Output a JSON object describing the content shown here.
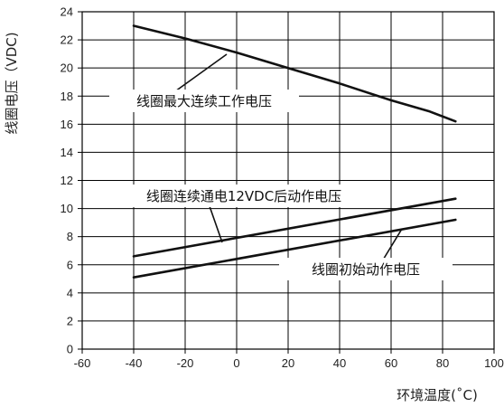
{
  "chart_data": {
    "type": "line",
    "title": "",
    "xlabel": "环境温度(˚C)",
    "ylabel": "线圈电压（VDC)",
    "xlim": [
      -60,
      100
    ],
    "ylim": [
      0,
      24
    ],
    "x_ticks": [
      "-60",
      "-40",
      "-20",
      "0",
      "20",
      "40",
      "60",
      "80",
      "100"
    ],
    "y_ticks": [
      "0",
      "2",
      "4",
      "6",
      "8",
      "10",
      "12",
      "14",
      "16",
      "18",
      "20",
      "22",
      "24"
    ],
    "grid": true,
    "legend": "none",
    "series": [
      {
        "name": "线圈最大连续工作电压",
        "x": [
          -40,
          -20,
          0,
          20,
          40,
          60,
          75,
          85
        ],
        "y": [
          23.0,
          22.1,
          21.1,
          20.0,
          18.9,
          17.7,
          16.9,
          16.2
        ]
      },
      {
        "name": "线圈连续通电12VDC后动作电压",
        "x": [
          -40,
          85
        ],
        "y": [
          6.6,
          10.7
        ]
      },
      {
        "name": "线圈初始动作电压",
        "x": [
          -40,
          85
        ],
        "y": [
          5.1,
          9.2
        ]
      }
    ],
    "annotations": [
      {
        "text": "线圈最大连续工作电压",
        "series": 0
      },
      {
        "text": "线圈连续通电12VDC后动作电压",
        "series": 1
      },
      {
        "text": "线圈初始动作电压",
        "series": 2
      }
    ]
  }
}
